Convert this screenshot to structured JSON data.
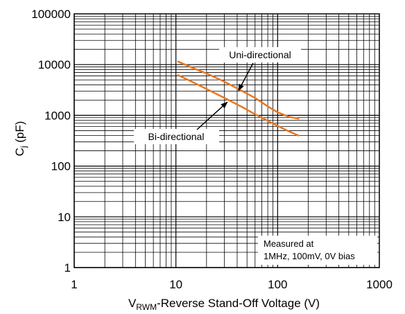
{
  "chart_data": {
    "type": "line",
    "xscale": "log",
    "yscale": "log",
    "xlim": [
      1,
      1000
    ],
    "ylim": [
      1,
      100000
    ],
    "grid": true,
    "xlabel_main": "V",
    "xlabel_sub": "RWM",
    "xlabel_rest": "-Reverse Stand-Off Voltage (V)",
    "ylabel_main": "C",
    "ylabel_sub": "j",
    "ylabel_rest": " (pF)",
    "x_ticks": [
      "1",
      "10",
      "100",
      "1000"
    ],
    "y_ticks": [
      "1",
      "10",
      "100",
      "1000",
      "10000",
      "100000"
    ],
    "series": [
      {
        "name": "Uni-directional",
        "color": "#E87722",
        "x": [
          10.5,
          15,
          20,
          30,
          45,
          60,
          80,
          100,
          130,
          160
        ],
        "y": [
          11500,
          8400,
          6700,
          4600,
          3000,
          2200,
          1500,
          1150,
          930,
          860
        ]
      },
      {
        "name": "Bi-directional",
        "color": "#E87722",
        "x": [
          10.5,
          15,
          20,
          30,
          45,
          60,
          80,
          100,
          130,
          160
        ],
        "y": [
          6200,
          4400,
          3300,
          2200,
          1450,
          1050,
          780,
          620,
          480,
          400
        ]
      }
    ],
    "annotations": [
      {
        "text": "Uni-directional",
        "arrow_to": [
          40,
          2900
        ]
      },
      {
        "text": "Bi-directional",
        "arrow_to": [
          33,
          2000
        ]
      }
    ],
    "note_lines": [
      "Measured at",
      "1MHz, 100mV, 0V bias"
    ]
  }
}
